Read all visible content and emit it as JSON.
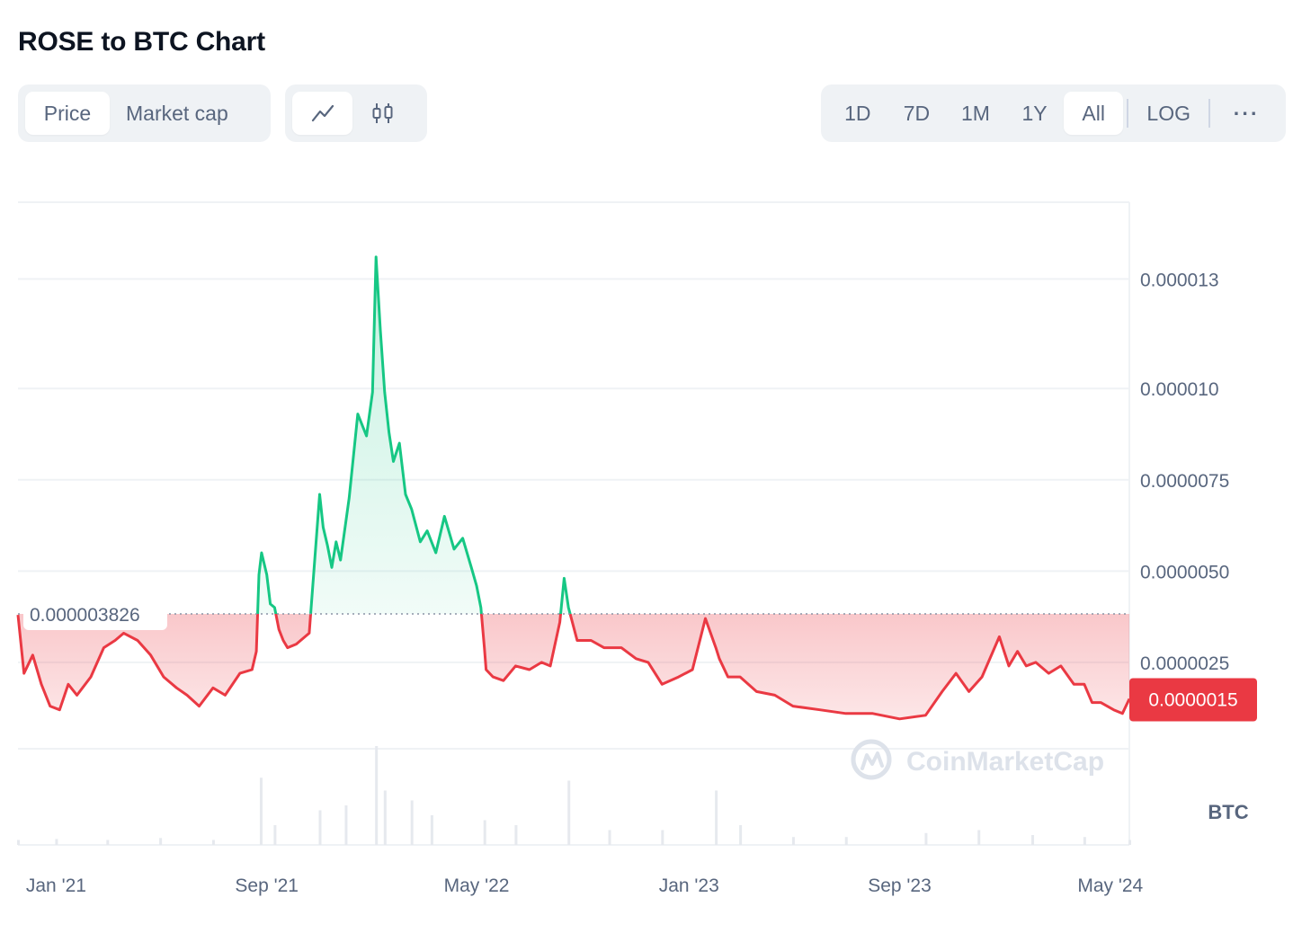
{
  "header": {
    "title": "ROSE to BTC Chart"
  },
  "toolbar": {
    "type_tabs": [
      {
        "label": "Price",
        "active": true
      },
      {
        "label": "Market cap",
        "active": false
      }
    ],
    "view_tabs": [
      {
        "icon": "line-chart-icon",
        "active": true
      },
      {
        "icon": "candlestick-icon",
        "active": false
      }
    ],
    "range_tabs": [
      {
        "label": "1D",
        "active": false
      },
      {
        "label": "7D",
        "active": false
      },
      {
        "label": "1M",
        "active": false
      },
      {
        "label": "1Y",
        "active": false
      },
      {
        "label": "All",
        "active": true
      }
    ],
    "log_label": "LOG",
    "more_label": "···"
  },
  "colors": {
    "up": "#16c784",
    "down": "#ea3943",
    "grid": "#eff2f5",
    "axis_text": "#58667e",
    "volume": "#e6e9ee"
  },
  "chart_data": {
    "type": "area",
    "title": "",
    "baseline": {
      "value": 3.826e-06,
      "label": "0.000003826"
    },
    "current_price": {
      "value": 1.5e-06,
      "label": "0.0000015"
    },
    "currency_label": "BTC",
    "watermark": "CoinMarketCap",
    "x_ticks": [
      {
        "label": "Jan '21",
        "date": "2021-01-01"
      },
      {
        "label": "Sep '21",
        "date": "2021-09-01"
      },
      {
        "label": "May '22",
        "date": "2022-05-01"
      },
      {
        "label": "Jan '23",
        "date": "2023-01-01"
      },
      {
        "label": "Sep '23",
        "date": "2023-09-01"
      },
      {
        "label": "May '24",
        "date": "2024-05-01"
      }
    ],
    "y_ticks": [
      {
        "label": "0.000013",
        "value": 1.3e-05
      },
      {
        "label": "0.000010",
        "value": 1e-05
      },
      {
        "label": "0.0000075",
        "value": 7.5e-06
      },
      {
        "label": "0.0000050",
        "value": 5e-06
      },
      {
        "label": "0.0000025",
        "value": 2.5e-06
      }
    ],
    "xlim": [
      "2020-11-18",
      "2024-05-23"
    ],
    "ylim": [
      -2.5e-06,
      1.51e-05
    ],
    "series": [
      {
        "x": [
          "2020-11-18",
          "2020-11-25",
          "2020-12-05",
          "2020-12-15",
          "2020-12-25",
          "2021-01-05",
          "2021-01-15",
          "2021-01-25",
          "2021-02-10",
          "2021-02-25",
          "2021-03-10",
          "2021-03-20",
          "2021-04-05",
          "2021-04-20",
          "2021-05-05",
          "2021-05-20",
          "2021-06-01",
          "2021-06-15",
          "2021-07-01",
          "2021-07-15",
          "2021-08-01",
          "2021-08-15",
          "2021-08-20",
          "2021-08-23",
          "2021-08-26",
          "2021-09-01",
          "2021-09-05",
          "2021-09-10",
          "2021-09-15",
          "2021-09-20",
          "2021-09-25",
          "2021-10-05",
          "2021-10-20",
          "2021-11-01",
          "2021-11-05",
          "2021-11-10",
          "2021-11-15",
          "2021-11-20",
          "2021-11-25",
          "2021-12-05",
          "2021-12-15",
          "2021-12-25",
          "2022-01-01",
          "2022-01-05",
          "2022-01-10",
          "2022-01-15",
          "2022-01-20",
          "2022-01-25",
          "2022-02-01",
          "2022-02-08",
          "2022-02-15",
          "2022-02-25",
          "2022-03-05",
          "2022-03-15",
          "2022-03-25",
          "2022-04-05",
          "2022-04-15",
          "2022-04-25",
          "2022-05-01",
          "2022-05-06",
          "2022-05-10",
          "2022-05-12",
          "2022-05-20",
          "2022-06-01",
          "2022-06-15",
          "2022-07-01",
          "2022-07-15",
          "2022-07-25",
          "2022-08-05",
          "2022-08-10",
          "2022-08-15",
          "2022-08-25",
          "2022-09-10",
          "2022-09-25",
          "2022-10-15",
          "2022-11-01",
          "2022-11-15",
          "2022-12-01",
          "2022-12-20",
          "2023-01-05",
          "2023-01-20",
          "2023-02-01",
          "2023-02-05",
          "2023-02-15",
          "2023-03-01",
          "2023-03-20",
          "2023-04-10",
          "2023-05-01",
          "2023-06-01",
          "2023-07-01",
          "2023-08-01",
          "2023-09-01",
          "2023-10-01",
          "2023-10-20",
          "2023-11-05",
          "2023-11-20",
          "2023-12-05",
          "2023-12-25",
          "2024-01-05",
          "2024-01-15",
          "2024-01-25",
          "2024-02-05",
          "2024-02-20",
          "2024-03-05",
          "2024-03-20",
          "2024-04-01",
          "2024-04-10",
          "2024-04-20",
          "2024-05-05",
          "2024-05-15",
          "2024-05-23"
        ],
        "y": [
          3.8e-06,
          2.2e-06,
          2.7e-06,
          1.9e-06,
          1.3e-06,
          1.2e-06,
          1.9e-06,
          1.6e-06,
          2.1e-06,
          2.9e-06,
          3.1e-06,
          3.3e-06,
          3.1e-06,
          2.7e-06,
          2.1e-06,
          1.8e-06,
          1.6e-06,
          1.3e-06,
          1.8e-06,
          1.6e-06,
          2.2e-06,
          2.3e-06,
          2.8e-06,
          4.9e-06,
          5.5e-06,
          4.9e-06,
          4.1e-06,
          4e-06,
          3.4e-06,
          3.1e-06,
          2.9e-06,
          3e-06,
          3.3e-06,
          7.1e-06,
          6.2e-06,
          5.7e-06,
          5.1e-06,
          5.8e-06,
          5.3e-06,
          7e-06,
          9.3e-06,
          8.7e-06,
          9.9e-06,
          1.36e-05,
          1.16e-05,
          9.9e-06,
          8.8e-06,
          8e-06,
          8.5e-06,
          7.1e-06,
          6.7e-06,
          5.8e-06,
          6.1e-06,
          5.5e-06,
          6.5e-06,
          5.6e-06,
          5.9e-06,
          5.1e-06,
          4.6e-06,
          4e-06,
          2.9e-06,
          2.3e-06,
          2.1e-06,
          2e-06,
          2.4e-06,
          2.3e-06,
          2.5e-06,
          2.4e-06,
          3.6e-06,
          4.8e-06,
          4e-06,
          3.1e-06,
          3.1e-06,
          2.9e-06,
          2.9e-06,
          2.6e-06,
          2.5e-06,
          1.9e-06,
          2.1e-06,
          2.3e-06,
          3.7e-06,
          2.9e-06,
          2.6e-06,
          2.1e-06,
          2.1e-06,
          1.7e-06,
          1.6e-06,
          1.3e-06,
          1.2e-06,
          1.1e-06,
          1.1e-06,
          9.5e-07,
          1.05e-06,
          1.7e-06,
          2.2e-06,
          1.7e-06,
          2.1e-06,
          3.2e-06,
          2.4e-06,
          2.8e-06,
          2.4e-06,
          2.5e-06,
          2.2e-06,
          2.4e-06,
          1.9e-06,
          1.9e-06,
          1.4e-06,
          1.4e-06,
          1.2e-06,
          1.1e-06,
          1.5e-06
        ]
      }
    ],
    "volume": {
      "x": [
        "2020-11-18",
        "2021-01-01",
        "2021-03-01",
        "2021-05-01",
        "2021-07-01",
        "2021-08-25",
        "2021-09-10",
        "2021-11-01",
        "2021-12-01",
        "2022-01-05",
        "2022-01-15",
        "2022-02-15",
        "2022-03-10",
        "2022-05-10",
        "2022-06-15",
        "2022-08-15",
        "2022-10-01",
        "2022-12-01",
        "2023-02-01",
        "2023-03-01",
        "2023-05-01",
        "2023-07-01",
        "2023-10-01",
        "2023-12-01",
        "2024-02-01",
        "2024-04-01",
        "2024-05-23"
      ],
      "y": [
        0.05,
        0.06,
        0.05,
        0.07,
        0.05,
        0.68,
        0.2,
        0.35,
        0.4,
        1.0,
        0.55,
        0.45,
        0.3,
        0.25,
        0.2,
        0.65,
        0.15,
        0.15,
        0.55,
        0.2,
        0.08,
        0.08,
        0.12,
        0.15,
        0.1,
        0.08,
        0.05
      ]
    }
  }
}
